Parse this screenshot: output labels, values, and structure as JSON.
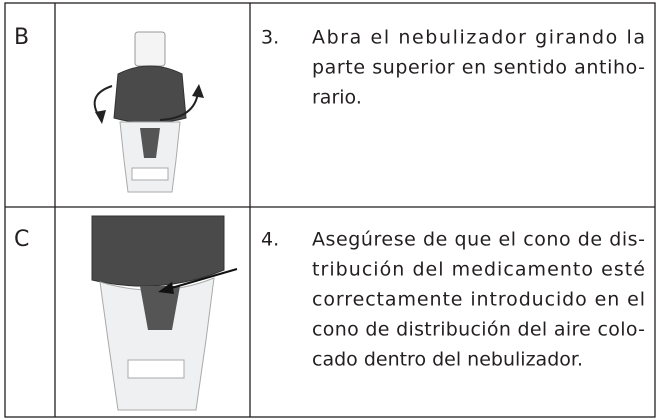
{
  "table": {
    "rows": [
      {
        "label": "B",
        "step": "3.",
        "lines": [
          "Abra el nebulizador girando la",
          "parte superior en sentido antiho-",
          "rario."
        ]
      },
      {
        "label": "C",
        "step": "4.",
        "lines": [
          "Asegúrese de que el cono de dis-",
          "tribución del medicamento esté",
          "correctamente introducido en el",
          "cono de distribución del aire colo-",
          "cado dentro del nebulizador."
        ]
      }
    ]
  }
}
